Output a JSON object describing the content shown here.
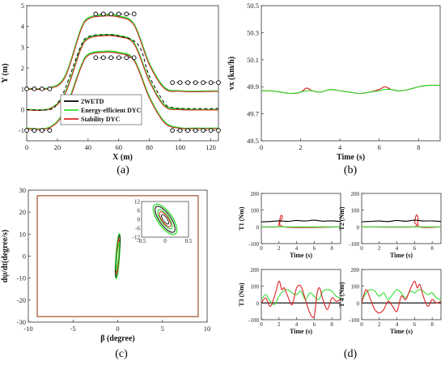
{
  "colors": {
    "2WETD": "#000000",
    "energy": "#33dd33",
    "stability": "#dd2222",
    "boundary": "#a0522d",
    "marker": "#000000"
  },
  "chart_data": [
    {
      "id": "a",
      "type": "line",
      "caption": "(a)",
      "xlabel": "X (m)",
      "ylabel": "Y (m)",
      "xlim": [
        0,
        125
      ],
      "ylim": [
        -1.5,
        5
      ],
      "xticks": [
        0,
        20,
        40,
        60,
        80,
        100,
        120
      ],
      "yticks": [
        -1,
        0,
        1,
        2,
        3,
        4,
        5
      ],
      "legend": {
        "position": "bottom-center",
        "entries": [
          {
            "label": "2WETD",
            "color_key": "2WETD"
          },
          {
            "label": "Energy-efficient DYC",
            "color_key": "energy"
          },
          {
            "label": "Stability DYC",
            "color_key": "stability"
          }
        ]
      },
      "series": [
        {
          "color_key": "energy",
          "width": 1.8,
          "x": [
            0,
            15,
            25,
            35,
            40,
            50,
            60,
            70,
            80,
            90,
            100,
            110,
            125
          ],
          "y": [
            1.0,
            1.05,
            1.6,
            3.8,
            4.4,
            4.55,
            4.5,
            4.1,
            2.2,
            1.05,
            0.9,
            0.88,
            0.9
          ]
        },
        {
          "color_key": "stability",
          "width": 1.0,
          "x": [
            0,
            15,
            25,
            35,
            40,
            50,
            60,
            70,
            80,
            90,
            100,
            110,
            125
          ],
          "y": [
            0.98,
            1.02,
            1.55,
            3.75,
            4.35,
            4.5,
            4.45,
            4.05,
            2.15,
            1.0,
            0.88,
            0.86,
            0.88
          ]
        },
        {
          "color_key": "energy",
          "width": 1.8,
          "x": [
            0,
            15,
            25,
            35,
            40,
            50,
            60,
            70,
            80,
            90,
            100,
            110,
            125
          ],
          "y": [
            0.0,
            0.05,
            0.8,
            2.9,
            3.45,
            3.6,
            3.55,
            3.2,
            1.4,
            0.2,
            0.05,
            0.0,
            0.0
          ]
        },
        {
          "color_key": "stability",
          "width": 1.0,
          "x": [
            0,
            15,
            25,
            35,
            40,
            50,
            60,
            70,
            80,
            90,
            100,
            110,
            125
          ],
          "y": [
            -0.02,
            0.03,
            0.75,
            2.85,
            3.4,
            3.55,
            3.5,
            3.15,
            1.35,
            0.15,
            0.0,
            -0.02,
            -0.02
          ]
        },
        {
          "color_key": "energy",
          "width": 1.8,
          "x": [
            0,
            15,
            25,
            35,
            40,
            50,
            60,
            70,
            80,
            90,
            100,
            110,
            125
          ],
          "y": [
            -0.9,
            -0.85,
            0.0,
            2.0,
            2.65,
            2.8,
            2.75,
            2.4,
            0.6,
            -0.6,
            -0.88,
            -0.9,
            -0.9
          ]
        },
        {
          "color_key": "stability",
          "width": 1.0,
          "x": [
            0,
            15,
            25,
            35,
            40,
            50,
            60,
            70,
            80,
            90,
            100,
            110,
            125
          ],
          "y": [
            -0.92,
            -0.87,
            -0.05,
            1.95,
            2.6,
            2.75,
            2.7,
            2.35,
            0.55,
            -0.65,
            -0.9,
            -0.92,
            -0.92
          ]
        },
        {
          "color_key": "2WETD",
          "width": 1.0,
          "dash": "4,3",
          "x": [
            0,
            15,
            20,
            25,
            35,
            40,
            50,
            60,
            70,
            75,
            80,
            90,
            95,
            100,
            125
          ],
          "y": [
            0,
            0,
            0.3,
            1.0,
            3.0,
            3.5,
            3.6,
            3.55,
            3.3,
            2.8,
            1.6,
            0.3,
            0.1,
            0.05,
            0.05
          ]
        }
      ],
      "cones": [
        {
          "x": [
            0,
            5,
            10,
            15
          ],
          "y": 1.0
        },
        {
          "x": [
            0,
            5,
            10,
            15
          ],
          "y": -1.0
        },
        {
          "x": [
            45,
            50,
            55,
            60,
            65,
            70
          ],
          "y": 4.6
        },
        {
          "x": [
            45,
            50,
            55,
            60,
            65,
            70
          ],
          "y": 2.5
        },
        {
          "x": [
            95,
            100,
            105,
            110,
            115,
            120,
            125
          ],
          "y": 1.3
        },
        {
          "x": [
            95,
            100,
            105,
            110,
            115,
            120,
            125
          ],
          "y": -1.0
        }
      ]
    },
    {
      "id": "b",
      "type": "line",
      "caption": "(b)",
      "xlabel": "Time (s)",
      "ylabel": "vx (km/h)",
      "xlim": [
        0,
        9.1
      ],
      "ylim": [
        49.5,
        50.5
      ],
      "xticks": [
        0,
        2,
        4,
        6,
        8
      ],
      "yticks": [
        49.5,
        49.7,
        49.9,
        50.1,
        50.3,
        50.5
      ],
      "series": [
        {
          "color_key": "stability",
          "width": 1.2,
          "x": [
            0,
            0.5,
            1.0,
            1.5,
            2.0,
            2.3,
            2.6,
            3.0,
            3.5,
            4.0,
            4.5,
            5.0,
            5.5,
            6.0,
            6.3,
            6.6,
            7.0,
            7.5,
            8.0,
            8.5,
            9.1
          ],
          "y": [
            49.87,
            49.87,
            49.86,
            49.85,
            49.86,
            49.89,
            49.87,
            49.86,
            49.88,
            49.87,
            49.86,
            49.85,
            49.86,
            49.88,
            49.9,
            49.88,
            49.87,
            49.88,
            49.9,
            49.91,
            49.91
          ]
        },
        {
          "color_key": "energy",
          "width": 1.2,
          "x": [
            0,
            0.5,
            1.0,
            1.5,
            2.0,
            2.3,
            2.6,
            3.0,
            3.5,
            4.0,
            4.5,
            5.0,
            5.5,
            6.0,
            6.3,
            6.6,
            7.0,
            7.5,
            8.0,
            8.5,
            9.1
          ],
          "y": [
            49.87,
            49.87,
            49.86,
            49.85,
            49.86,
            49.87,
            49.87,
            49.86,
            49.88,
            49.87,
            49.86,
            49.85,
            49.86,
            49.87,
            49.88,
            49.88,
            49.87,
            49.88,
            49.9,
            49.91,
            49.91
          ]
        }
      ]
    },
    {
      "id": "c",
      "type": "line",
      "caption": "(c)",
      "xlabel": "β (degree)",
      "ylabel": "dψ/dt(degree/s)",
      "xlim": [
        -10,
        10
      ],
      "ylim": [
        -30,
        30
      ],
      "xticks": [
        -10,
        -5,
        0,
        5,
        10
      ],
      "yticks": [
        -30,
        -20,
        -10,
        0,
        10,
        20,
        30
      ],
      "boundary": {
        "x": [
          -9,
          9
        ],
        "y": [
          -27.5,
          27.5
        ],
        "color_key": "boundary"
      },
      "inset": {
        "xlim": [
          -0.5,
          0.5
        ],
        "ylim": [
          -12,
          12
        ],
        "xticks": [
          -0.5,
          0,
          0.5
        ],
        "yticks": [
          -12,
          -6,
          0,
          6,
          12
        ]
      }
    },
    {
      "id": "d",
      "type": "line",
      "caption": "(d)",
      "subplots": [
        {
          "ylabel": "T1 (Nm)",
          "xlabel": "Time (s)",
          "xlim": [
            0,
            9
          ],
          "ylim": [
            -100,
            200
          ],
          "xticks": [
            0,
            2,
            4,
            6,
            8
          ],
          "yticks": [
            -100,
            0,
            100,
            200
          ],
          "series": [
            {
              "color_key": "stability",
              "x": [
                0,
                1.8,
                2.0,
                2.2,
                2.4,
                2.6,
                9
              ],
              "y": [
                0,
                0,
                20,
                65,
                60,
                0,
                0
              ]
            },
            {
              "color_key": "energy",
              "x": [
                0,
                9
              ],
              "y": [
                0,
                0
              ]
            },
            {
              "color_key": "2WETD",
              "x": [
                0,
                1,
                2,
                3,
                4,
                5,
                6,
                7,
                8,
                9
              ],
              "y": [
                30,
                32,
                36,
                33,
                38,
                35,
                40,
                34,
                36,
                32
              ]
            }
          ]
        },
        {
          "ylabel": "T2 (Nm)",
          "xlabel": "Time (s)",
          "xlim": [
            0,
            9
          ],
          "ylim": [
            -100,
            200
          ],
          "xticks": [
            0,
            2,
            4,
            6,
            8
          ],
          "yticks": [
            -100,
            0,
            100,
            200
          ],
          "series": [
            {
              "color_key": "stability",
              "x": [
                0,
                5.8,
                6.0,
                6.2,
                6.4,
                6.6,
                9
              ],
              "y": [
                0,
                0,
                30,
                70,
                55,
                0,
                0
              ]
            },
            {
              "color_key": "energy",
              "x": [
                0,
                9
              ],
              "y": [
                0,
                0
              ]
            },
            {
              "color_key": "2WETD",
              "x": [
                0,
                1,
                2,
                3,
                4,
                5,
                6,
                7,
                8,
                9
              ],
              "y": [
                30,
                33,
                35,
                32,
                38,
                34,
                40,
                35,
                36,
                32
              ]
            }
          ]
        },
        {
          "ylabel": "T3 (Nm)",
          "xlabel": "Time (s)",
          "xlim": [
            0,
            9
          ],
          "ylim": [
            -100,
            200
          ],
          "xticks": [
            0,
            2,
            4,
            6,
            8
          ],
          "yticks": [
            -100,
            0,
            100,
            200
          ],
          "series": [
            {
              "color_key": "2WETD",
              "x": [
                0,
                9
              ],
              "y": [
                0,
                0
              ]
            },
            {
              "color_key": "energy",
              "x": [
                0,
                0.5,
                1.0,
                1.5,
                2.0,
                2.5,
                3.0,
                3.5,
                4.0,
                4.5,
                5.0,
                5.5,
                6.0,
                6.5,
                7.0,
                7.5,
                8.0,
                8.5,
                9.0
              ],
              "y": [
                20,
                50,
                10,
                -10,
                40,
                70,
                80,
                60,
                50,
                70,
                20,
                60,
                40,
                20,
                70,
                80,
                70,
                40,
                30
              ]
            },
            {
              "color_key": "stability",
              "x": [
                0,
                0.5,
                1.0,
                1.5,
                2.0,
                2.3,
                2.6,
                3.0,
                3.5,
                4.0,
                4.5,
                5.0,
                5.5,
                6.0,
                6.3,
                6.6,
                7.0,
                7.5,
                8.0,
                8.5,
                9.0
              ],
              "y": [
                0,
                30,
                -20,
                40,
                130,
                80,
                90,
                40,
                -10,
                90,
                100,
                20,
                -60,
                -80,
                50,
                90,
                20,
                -40,
                30,
                10,
                20
              ]
            }
          ]
        },
        {
          "ylabel": "T 4 (Nm)",
          "xlabel": "Time (s)",
          "xlim": [
            0,
            9
          ],
          "ylim": [
            -100,
            200
          ],
          "xticks": [
            0,
            2,
            4,
            6,
            8
          ],
          "yticks": [
            -100,
            0,
            100,
            200
          ],
          "series": [
            {
              "color_key": "2WETD",
              "x": [
                0,
                9
              ],
              "y": [
                0,
                0
              ]
            },
            {
              "color_key": "energy",
              "x": [
                0,
                0.5,
                1.0,
                1.5,
                2.0,
                2.5,
                3.0,
                3.5,
                4.0,
                4.5,
                5.0,
                5.5,
                6.0,
                6.5,
                7.0,
                7.5,
                8.0,
                8.5,
                9.0
              ],
              "y": [
                10,
                60,
                80,
                70,
                40,
                60,
                20,
                50,
                80,
                60,
                30,
                70,
                60,
                80,
                70,
                50,
                60,
                30,
                20
              ]
            },
            {
              "color_key": "stability",
              "x": [
                0,
                0.5,
                1.0,
                1.5,
                2.0,
                2.5,
                3.0,
                3.5,
                4.0,
                4.5,
                5.0,
                5.5,
                6.0,
                6.3,
                6.6,
                7.0,
                7.5,
                8.0,
                8.5,
                9.0
              ],
              "y": [
                0,
                80,
                20,
                -40,
                -60,
                -40,
                10,
                -20,
                -50,
                40,
                20,
                80,
                130,
                90,
                110,
                40,
                -20,
                20,
                0,
                10
              ]
            }
          ]
        }
      ]
    }
  ]
}
